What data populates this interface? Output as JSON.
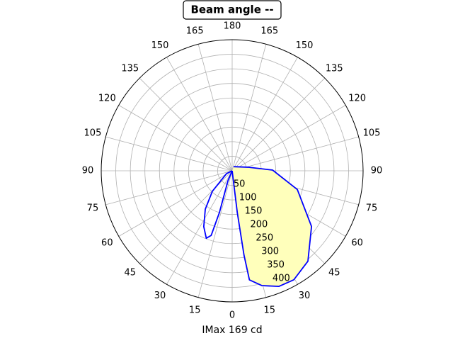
{
  "chart_data": {
    "type": "polar",
    "title": "Beam angle --",
    "x_label": "IMax 169 cd",
    "ylim": [
      0,
      450
    ],
    "yticks": [
      50,
      100,
      150,
      200,
      250,
      300,
      350,
      400
    ],
    "xticks": [
      0,
      15,
      30,
      45,
      60,
      75,
      90,
      105,
      120,
      135,
      150,
      165,
      180,
      {
        "value": 195,
        "label": "165"
      },
      {
        "value": 210,
        "label": "150"
      },
      {
        "value": 225,
        "label": "135"
      },
      {
        "value": 240,
        "label": "120"
      },
      {
        "value": 255,
        "label": "105"
      },
      {
        "value": 270,
        "label": "90"
      },
      {
        "value": 285,
        "label": "75"
      },
      {
        "value": 300,
        "label": "60"
      },
      {
        "value": 315,
        "label": "45"
      },
      {
        "value": 330,
        "label": "30"
      },
      {
        "value": 345,
        "label": "15"
      }
    ],
    "grid": true,
    "series": [
      {
        "color": "#0000ff",
        "fill": "#ffffbb",
        "x": [
          0,
          7,
          8,
          9,
          14.5,
          22,
          29.5,
          40,
          55,
          74,
          91,
          103,
          160
        ],
        "values": [
          0,
          145,
          292,
          379,
          407,
          428,
          430,
          405,
          333,
          233,
          139,
          55,
          15
        ]
      },
      {
        "color": "#0000ff",
        "x": [
          0,
          -23,
          -17,
          -18,
          -21,
          -27,
          -35,
          -44,
          -63,
          0
        ],
        "values": [
          0,
          37,
          150,
          233,
          248,
          215,
          161,
          98,
          22,
          0
        ]
      }
    ]
  }
}
